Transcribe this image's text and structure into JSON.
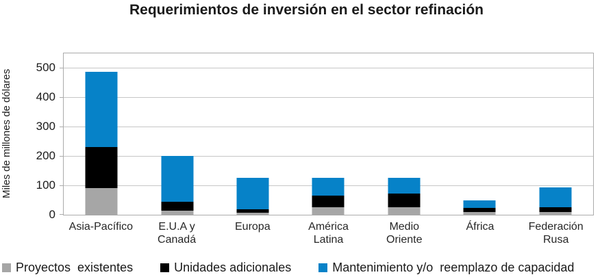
{
  "chart_data": {
    "type": "bar",
    "stacked": true,
    "title": "Requerimientos de inversión en el sector refinación",
    "ylabel": "Miles de millones de dólares",
    "xlabel": "",
    "ylim": [
      0,
      550
    ],
    "yticks": [
      0,
      100,
      200,
      300,
      400,
      500
    ],
    "grid": true,
    "legend_position": "bottom",
    "categories": [
      "Asia-Pacífico",
      "E.U.A y\nCanadá",
      "Europa",
      "América\nLatina",
      "Medio\nOriente",
      "África",
      "Federación\nRusa"
    ],
    "series": [
      {
        "name": "Proyectos  existentes",
        "color": "#a6a6a6",
        "values": [
          90,
          15,
          8,
          25,
          25,
          10,
          10
        ]
      },
      {
        "name": "Unidades adicionales",
        "color": "#000000",
        "values": [
          140,
          30,
          12,
          40,
          48,
          13,
          16
        ]
      },
      {
        "name": "Mantenimiento y/o  reemplazo de capacidad",
        "color": "#0682c8",
        "values": [
          257,
          155,
          105,
          60,
          52,
          27,
          67
        ]
      }
    ]
  },
  "colors": {
    "gridline": "#c6c6c6",
    "plot_border": "#ababab",
    "background": "#ffffff"
  }
}
